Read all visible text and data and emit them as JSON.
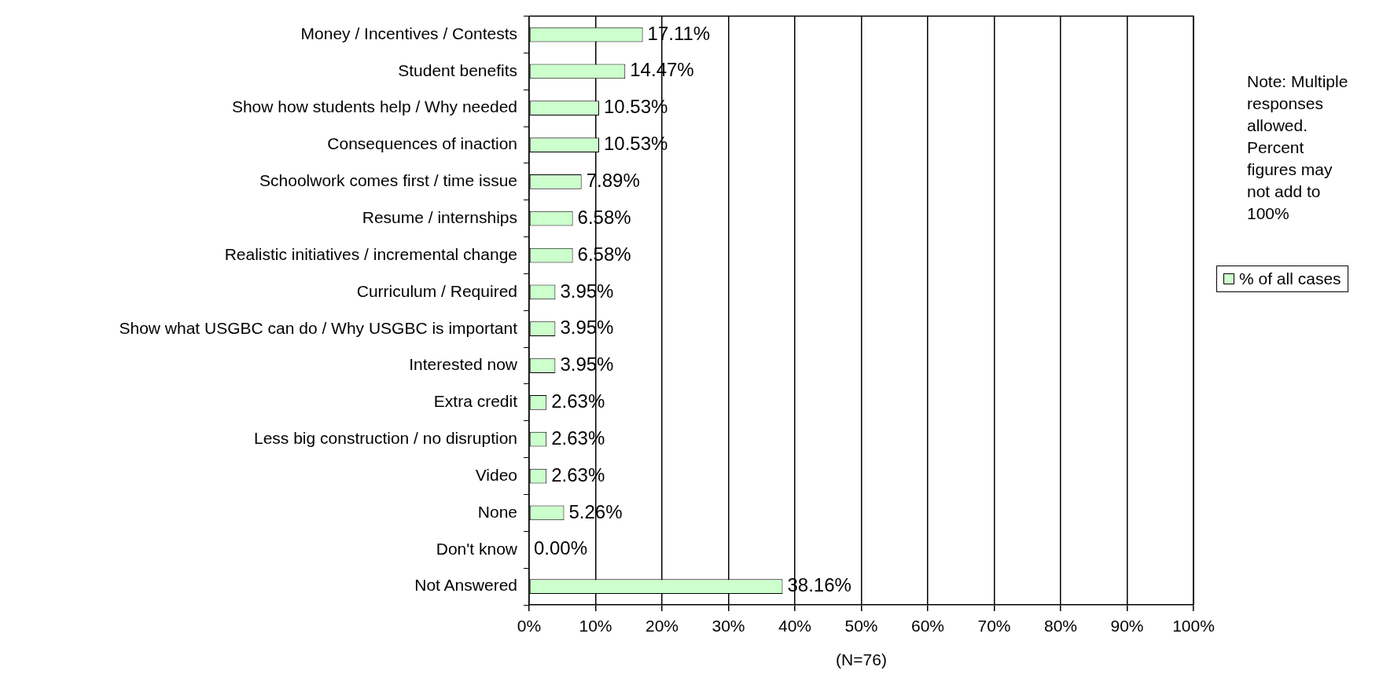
{
  "chart_data": {
    "type": "bar",
    "orientation": "horizontal",
    "categories": [
      "Money / Incentives / Contests",
      "Student benefits",
      "Show how students help / Why needed",
      "Consequences of inaction",
      "Schoolwork comes first / time issue",
      "Resume / internships",
      "Realistic initiatives / incremental change",
      "Curriculum / Required",
      "Show what USGBC can do / Why USGBC is important",
      "Interested now",
      "Extra credit",
      "Less big construction / no disruption",
      "Video",
      "None",
      "Don't know",
      "Not Answered"
    ],
    "series": [
      {
        "name": "% of all cases",
        "color": "#ccffcc",
        "values": [
          17.11,
          14.47,
          10.53,
          10.53,
          7.89,
          6.58,
          6.58,
          3.95,
          3.95,
          3.95,
          2.63,
          2.63,
          2.63,
          5.26,
          0,
          38.16
        ],
        "value_labels": [
          "17.11%",
          "14.47%",
          "10.53%",
          "10.53%",
          "7.89%",
          "6.58%",
          "6.58%",
          "3.95%",
          "3.95%",
          "3.95%",
          "2.63%",
          "2.63%",
          "2.63%",
          "5.26%",
          "0.00%",
          "38.16%"
        ]
      }
    ],
    "xlim": [
      0,
      100
    ],
    "xticks": [
      {
        "value": 0,
        "label": "0%"
      },
      {
        "value": 10,
        "label": "10%"
      },
      {
        "value": 20,
        "label": "20%"
      },
      {
        "value": 30,
        "label": "30%"
      },
      {
        "value": 40,
        "label": "40%"
      },
      {
        "value": 50,
        "label": "50%"
      },
      {
        "value": 60,
        "label": "60%"
      },
      {
        "value": 70,
        "label": "70%"
      },
      {
        "value": 80,
        "label": "80%"
      },
      {
        "value": 90,
        "label": "90%"
      },
      {
        "value": 100,
        "label": "100%"
      }
    ],
    "xlabel": "(N=76)",
    "annotations": [
      "Note: Multiple responses allowed. Percent figures may not add to 100%"
    ],
    "grid": "x",
    "legend": "right"
  }
}
